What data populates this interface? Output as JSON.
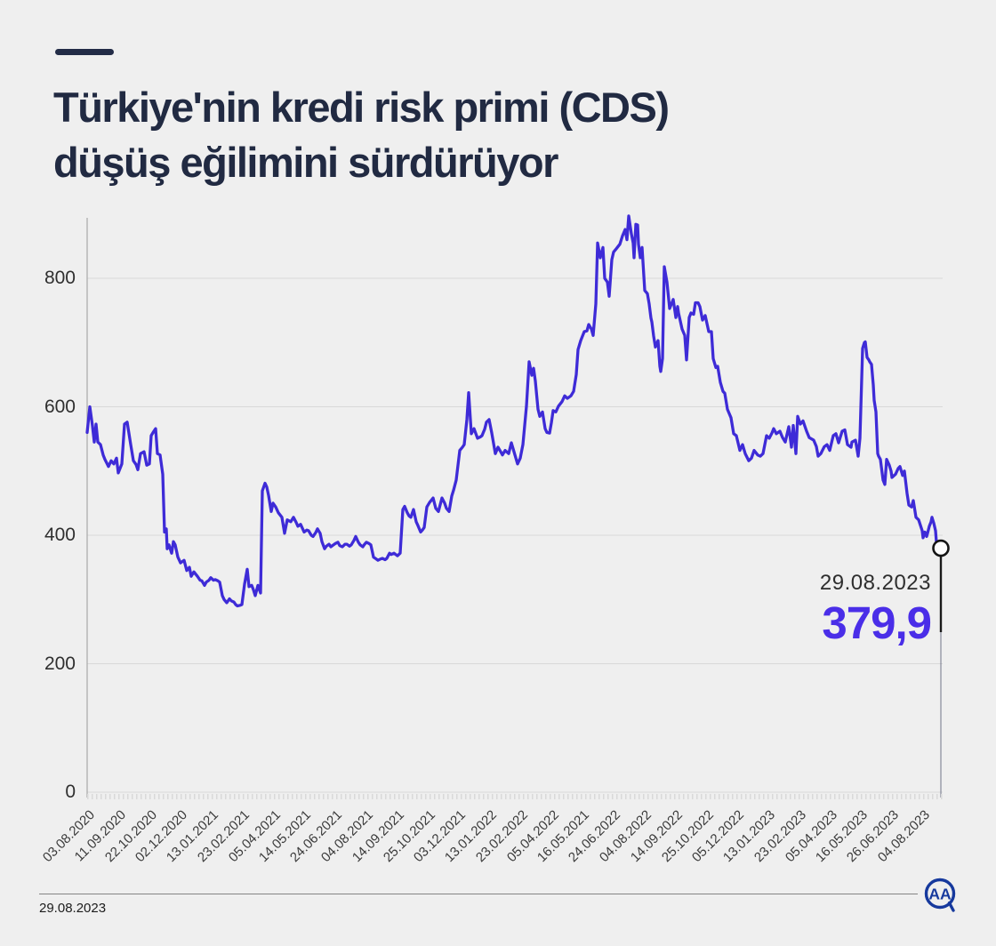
{
  "theme": {
    "background": "#efefef",
    "title_color": "#212a42",
    "accent_color": "#232c47",
    "line_color": "#3e2bd7",
    "value_color": "#4a2ee8",
    "grid_color": "#d8d8d8",
    "axis_color": "#a8a8a8",
    "logo_color": "#16399d"
  },
  "header": {
    "title_line1": "Türkiye'nin kredi risk primi (CDS)",
    "title_line2": "düşüş eğilimini sürdürüyor"
  },
  "annotation": {
    "date": "29.08.2023",
    "value": "379,9"
  },
  "footer": {
    "date": "29.08.2023",
    "logo": "AA"
  },
  "chart_data": {
    "type": "line",
    "title": "Türkiye'nin kredi risk primi (CDS) düşüş eğilimini sürdürüyor",
    "xlabel": "",
    "ylabel": "",
    "ylim": [
      0,
      900
    ],
    "yticks": [
      0,
      200,
      400,
      600,
      800
    ],
    "grid": true,
    "legend": "none",
    "x_tick_labels": [
      "03.08.2020",
      "11.09.2020",
      "22.10.2020",
      "02.12.2020",
      "13.01.2021",
      "23.02.2021",
      "05.04.2021",
      "14.05.2021",
      "24.06.2021",
      "04.08.2021",
      "14.09.2021",
      "25.10.2021",
      "03.12.2021",
      "13.01.2022",
      "23.02.2022",
      "05.04.2022",
      "16.05.2021",
      "24.06.2022",
      "04.08.2022",
      "14.09.2022",
      "25.10.2022",
      "05.12.2022",
      "13.01.2023",
      "23.02.2023",
      "05.04.2023",
      "16.05.2023",
      "26.06.2023",
      "04.08.2023"
    ],
    "last_point": {
      "date": "29.08.2023",
      "value": 379.9
    },
    "series": {
      "t_domain": [
        0,
        960
      ],
      "points": [
        [
          0,
          560
        ],
        [
          3,
          600
        ],
        [
          6,
          570
        ],
        [
          8,
          545
        ],
        [
          10,
          573
        ],
        [
          12,
          545
        ],
        [
          15,
          541
        ],
        [
          18,
          525
        ],
        [
          20,
          518
        ],
        [
          24,
          507
        ],
        [
          27,
          516
        ],
        [
          30,
          511
        ],
        [
          33,
          520
        ],
        [
          35,
          497
        ],
        [
          39,
          511
        ],
        [
          42,
          573
        ],
        [
          45,
          576
        ],
        [
          49,
          541
        ],
        [
          52,
          516
        ],
        [
          55,
          510
        ],
        [
          57,
          502
        ],
        [
          60,
          527
        ],
        [
          64,
          530
        ],
        [
          67,
          509
        ],
        [
          70,
          511
        ],
        [
          72,
          555
        ],
        [
          75,
          562
        ],
        [
          77,
          566
        ],
        [
          79,
          527
        ],
        [
          82,
          525
        ],
        [
          85,
          495
        ],
        [
          87,
          405
        ],
        [
          89,
          410
        ],
        [
          90,
          379
        ],
        [
          92,
          385
        ],
        [
          95,
          372
        ],
        [
          97,
          390
        ],
        [
          99,
          385
        ],
        [
          102,
          366
        ],
        [
          105,
          357
        ],
        [
          109,
          361
        ],
        [
          112,
          345
        ],
        [
          115,
          350
        ],
        [
          117,
          336
        ],
        [
          120,
          343
        ],
        [
          124,
          336
        ],
        [
          127,
          330
        ],
        [
          129,
          329
        ],
        [
          132,
          322
        ],
        [
          134,
          327
        ],
        [
          137,
          330
        ],
        [
          139,
          334
        ],
        [
          142,
          330
        ],
        [
          144,
          331
        ],
        [
          147,
          329
        ],
        [
          149,
          327
        ],
        [
          152,
          306
        ],
        [
          154,
          300
        ],
        [
          157,
          295
        ],
        [
          160,
          301
        ],
        [
          162,
          298
        ],
        [
          165,
          296
        ],
        [
          167,
          292
        ],
        [
          169,
          290
        ],
        [
          172,
          291
        ],
        [
          174,
          292
        ],
        [
          177,
          324
        ],
        [
          180,
          347
        ],
        [
          182,
          320
        ],
        [
          185,
          322
        ],
        [
          187,
          315
        ],
        [
          189,
          306
        ],
        [
          192,
          322
        ],
        [
          195,
          310
        ],
        [
          197,
          469
        ],
        [
          200,
          481
        ],
        [
          202,
          475
        ],
        [
          204,
          462
        ],
        [
          207,
          437
        ],
        [
          209,
          450
        ],
        [
          212,
          444
        ],
        [
          215,
          435
        ],
        [
          219,
          428
        ],
        [
          222,
          403
        ],
        [
          225,
          424
        ],
        [
          229,
          421
        ],
        [
          232,
          428
        ],
        [
          235,
          420
        ],
        [
          237,
          414
        ],
        [
          240,
          417
        ],
        [
          244,
          405
        ],
        [
          247,
          408
        ],
        [
          249,
          407
        ],
        [
          252,
          400
        ],
        [
          254,
          398
        ],
        [
          257,
          404
        ],
        [
          259,
          410
        ],
        [
          262,
          403
        ],
        [
          264,
          390
        ],
        [
          267,
          379
        ],
        [
          269,
          383
        ],
        [
          272,
          386
        ],
        [
          274,
          382
        ],
        [
          277,
          385
        ],
        [
          279,
          387
        ],
        [
          282,
          389
        ],
        [
          284,
          384
        ],
        [
          287,
          382
        ],
        [
          290,
          386
        ],
        [
          292,
          386
        ],
        [
          295,
          383
        ],
        [
          297,
          385
        ],
        [
          300,
          392
        ],
        [
          302,
          398
        ],
        [
          305,
          389
        ],
        [
          307,
          385
        ],
        [
          310,
          382
        ],
        [
          312,
          386
        ],
        [
          314,
          389
        ],
        [
          317,
          387
        ],
        [
          319,
          385
        ],
        [
          322,
          366
        ],
        [
          325,
          363
        ],
        [
          327,
          361
        ],
        [
          330,
          363
        ],
        [
          332,
          364
        ],
        [
          335,
          362
        ],
        [
          337,
          364
        ],
        [
          340,
          372
        ],
        [
          342,
          370
        ],
        [
          345,
          372
        ],
        [
          347,
          370
        ],
        [
          349,
          368
        ],
        [
          352,
          372
        ],
        [
          355,
          440
        ],
        [
          357,
          445
        ],
        [
          360,
          435
        ],
        [
          362,
          430
        ],
        [
          364,
          428
        ],
        [
          367,
          440
        ],
        [
          370,
          421
        ],
        [
          372,
          415
        ],
        [
          375,
          405
        ],
        [
          377,
          408
        ],
        [
          379,
          412
        ],
        [
          382,
          444
        ],
        [
          385,
          451
        ],
        [
          389,
          458
        ],
        [
          392,
          442
        ],
        [
          395,
          437
        ],
        [
          399,
          458
        ],
        [
          402,
          450
        ],
        [
          404,
          442
        ],
        [
          407,
          437
        ],
        [
          410,
          461
        ],
        [
          412,
          470
        ],
        [
          415,
          486
        ],
        [
          419,
          532
        ],
        [
          422,
          537
        ],
        [
          424,
          541
        ],
        [
          427,
          580
        ],
        [
          429,
          622
        ],
        [
          432,
          558
        ],
        [
          435,
          566
        ],
        [
          439,
          551
        ],
        [
          442,
          553
        ],
        [
          444,
          555
        ],
        [
          447,
          565
        ],
        [
          449,
          576
        ],
        [
          452,
          580
        ],
        [
          455,
          559
        ],
        [
          459,
          527
        ],
        [
          462,
          537
        ],
        [
          465,
          530
        ],
        [
          467,
          525
        ],
        [
          470,
          532
        ],
        [
          474,
          527
        ],
        [
          477,
          544
        ],
        [
          480,
          530
        ],
        [
          484,
          511
        ],
        [
          487,
          520
        ],
        [
          490,
          541
        ],
        [
          494,
          601
        ],
        [
          497,
          670
        ],
        [
          500,
          649
        ],
        [
          502,
          660
        ],
        [
          504,
          640
        ],
        [
          507,
          596
        ],
        [
          509,
          585
        ],
        [
          512,
          592
        ],
        [
          515,
          566
        ],
        [
          517,
          560
        ],
        [
          520,
          559
        ],
        [
          522,
          575
        ],
        [
          524,
          594
        ],
        [
          527,
          592
        ],
        [
          530,
          601
        ],
        [
          534,
          608
        ],
        [
          537,
          617
        ],
        [
          540,
          613
        ],
        [
          544,
          617
        ],
        [
          547,
          624
        ],
        [
          550,
          650
        ],
        [
          552,
          689
        ],
        [
          555,
          703
        ],
        [
          559,
          717
        ],
        [
          562,
          718
        ],
        [
          564,
          728
        ],
        [
          567,
          721
        ],
        [
          569,
          711
        ],
        [
          572,
          760
        ],
        [
          574,
          855
        ],
        [
          577,
          832
        ],
        [
          580,
          848
        ],
        [
          582,
          800
        ],
        [
          585,
          794
        ],
        [
          587,
          772
        ],
        [
          590,
          829
        ],
        [
          592,
          841
        ],
        [
          595,
          846
        ],
        [
          599,
          853
        ],
        [
          602,
          866
        ],
        [
          605,
          876
        ],
        [
          607,
          860
        ],
        [
          609,
          897
        ],
        [
          612,
          869
        ],
        [
          614,
          855
        ],
        [
          615,
          832
        ],
        [
          617,
          884
        ],
        [
          619,
          883
        ],
        [
          620,
          853
        ],
        [
          622,
          832
        ],
        [
          624,
          848
        ],
        [
          627,
          781
        ],
        [
          630,
          776
        ],
        [
          632,
          760
        ],
        [
          634,
          738
        ],
        [
          635,
          732
        ],
        [
          637,
          710
        ],
        [
          639,
          693
        ],
        [
          642,
          703
        ],
        [
          644,
          663
        ],
        [
          645,
          655
        ],
        [
          647,
          675
        ],
        [
          649,
          818
        ],
        [
          652,
          794
        ],
        [
          655,
          753
        ],
        [
          659,
          767
        ],
        [
          662,
          739
        ],
        [
          664,
          756
        ],
        [
          665,
          746
        ],
        [
          669,
          721
        ],
        [
          672,
          711
        ],
        [
          674,
          673
        ],
        [
          677,
          739
        ],
        [
          679,
          746
        ],
        [
          682,
          744
        ],
        [
          684,
          762
        ],
        [
          687,
          762
        ],
        [
          689,
          756
        ],
        [
          692,
          735
        ],
        [
          695,
          742
        ],
        [
          699,
          717
        ],
        [
          702,
          717
        ],
        [
          704,
          675
        ],
        [
          707,
          661
        ],
        [
          709,
          663
        ],
        [
          712,
          638
        ],
        [
          715,
          624
        ],
        [
          717,
          621
        ],
        [
          720,
          596
        ],
        [
          724,
          583
        ],
        [
          727,
          558
        ],
        [
          730,
          555
        ],
        [
          734,
          532
        ],
        [
          737,
          541
        ],
        [
          740,
          527
        ],
        [
          744,
          516
        ],
        [
          747,
          520
        ],
        [
          750,
          532
        ],
        [
          754,
          525
        ],
        [
          757,
          523
        ],
        [
          760,
          527
        ],
        [
          764,
          555
        ],
        [
          767,
          551
        ],
        [
          770,
          559
        ],
        [
          772,
          566
        ],
        [
          775,
          558
        ],
        [
          779,
          562
        ],
        [
          782,
          552
        ],
        [
          785,
          545
        ],
        [
          789,
          569
        ],
        [
          792,
          537
        ],
        [
          794,
          571
        ],
        [
          797,
          527
        ],
        [
          799,
          585
        ],
        [
          802,
          573
        ],
        [
          805,
          578
        ],
        [
          809,
          562
        ],
        [
          812,
          552
        ],
        [
          817,
          548
        ],
        [
          820,
          538
        ],
        [
          822,
          523
        ],
        [
          825,
          527
        ],
        [
          829,
          538
        ],
        [
          832,
          541
        ],
        [
          835,
          532
        ],
        [
          839,
          555
        ],
        [
          842,
          558
        ],
        [
          845,
          544
        ],
        [
          849,
          562
        ],
        [
          852,
          564
        ],
        [
          855,
          541
        ],
        [
          859,
          537
        ],
        [
          860,
          545
        ],
        [
          864,
          548
        ],
        [
          867,
          523
        ],
        [
          869,
          551
        ],
        [
          872,
          691
        ],
        [
          874,
          700
        ],
        [
          875,
          701
        ],
        [
          877,
          677
        ],
        [
          879,
          673
        ],
        [
          880,
          670
        ],
        [
          882,
          666
        ],
        [
          884,
          634
        ],
        [
          885,
          610
        ],
        [
          887,
          592
        ],
        [
          889,
          527
        ],
        [
          890,
          523
        ],
        [
          892,
          518
        ],
        [
          895,
          486
        ],
        [
          897,
          479
        ],
        [
          899,
          518
        ],
        [
          902,
          509
        ],
        [
          904,
          500
        ],
        [
          905,
          490
        ],
        [
          909,
          495
        ],
        [
          912,
          504
        ],
        [
          914,
          507
        ],
        [
          917,
          493
        ],
        [
          919,
          500
        ],
        [
          922,
          465
        ],
        [
          924,
          447
        ],
        [
          927,
          444
        ],
        [
          929,
          454
        ],
        [
          932,
          428
        ],
        [
          935,
          424
        ],
        [
          939,
          407
        ],
        [
          940,
          396
        ],
        [
          942,
          405
        ],
        [
          944,
          398
        ],
        [
          945,
          403
        ],
        [
          947,
          414
        ],
        [
          949,
          421
        ],
        [
          950,
          428
        ],
        [
          952,
          419
        ],
        [
          954,
          407
        ],
        [
          955,
          389
        ],
        [
          958,
          382
        ],
        [
          960,
          379.9
        ]
      ]
    }
  }
}
